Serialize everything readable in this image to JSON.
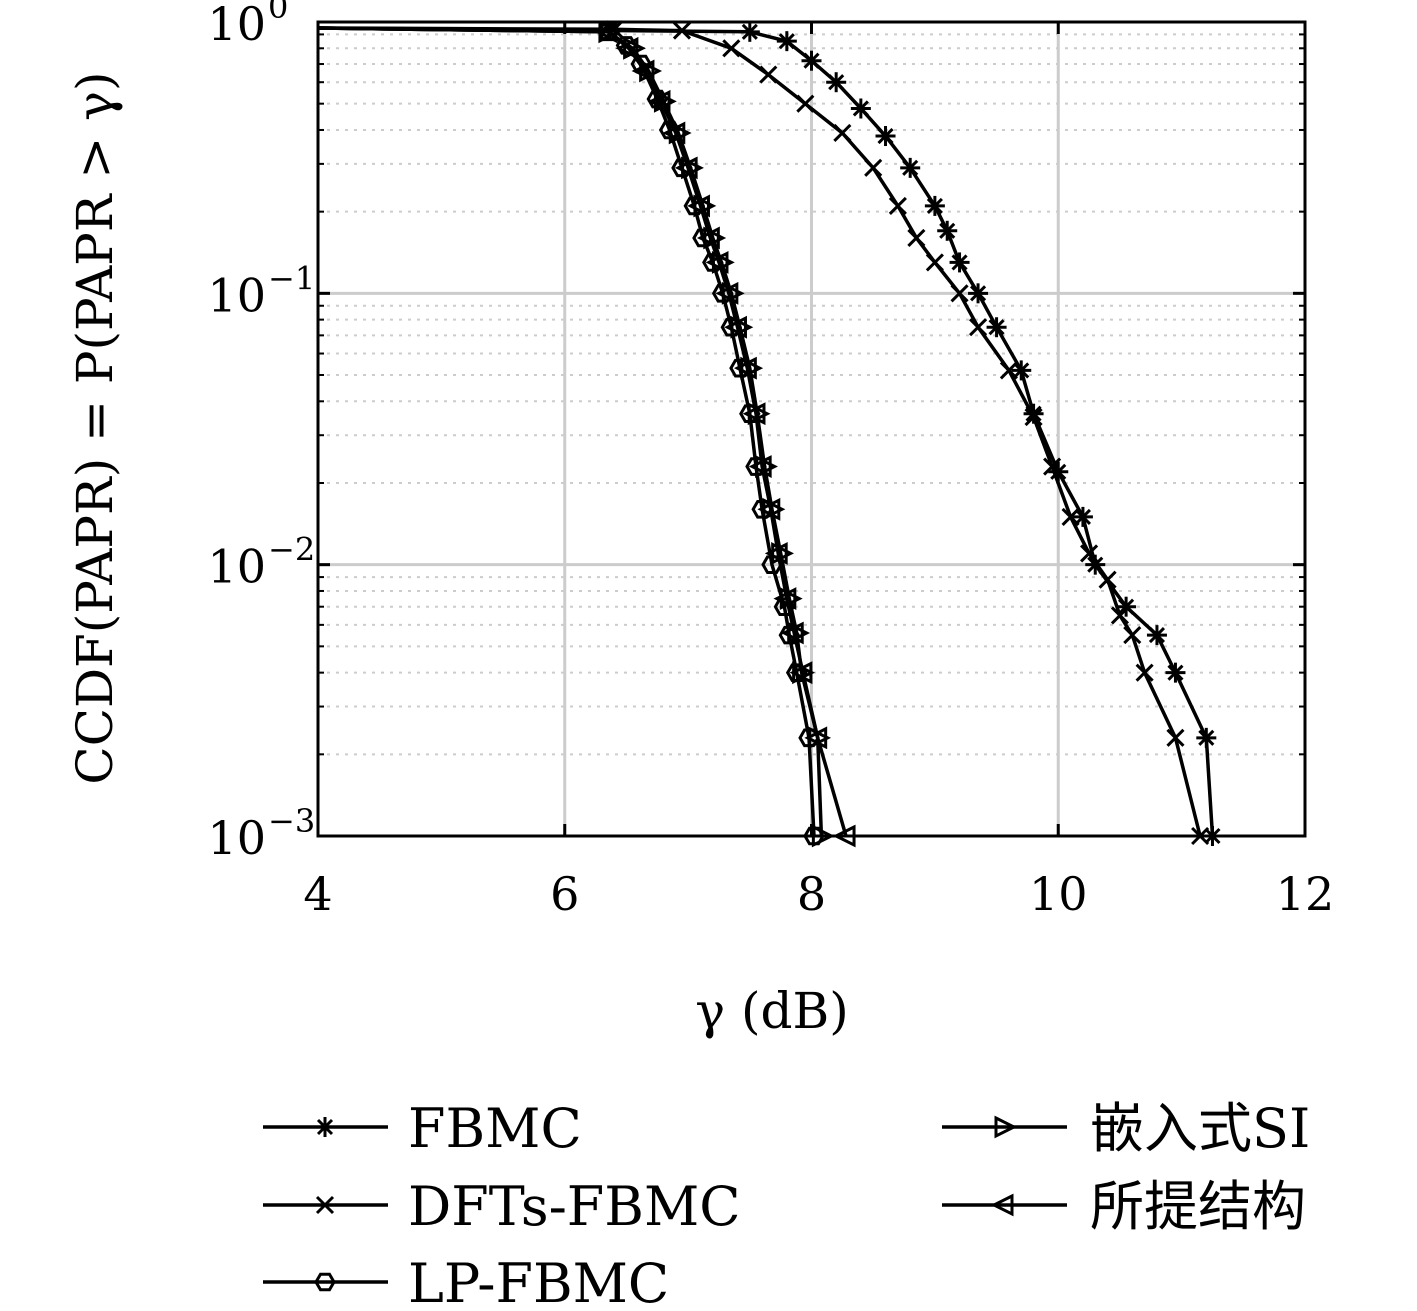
{
  "chart_data": {
    "type": "line",
    "xlabel": "γ (dB)",
    "ylabel": "CCDF(PAPR) = P(PAPR > γ)",
    "xlim": [
      4,
      12
    ],
    "ylim": [
      0.001,
      1
    ],
    "yscale": "log",
    "grid": true,
    "legend_position": "below",
    "x_ticks": [
      "4",
      "6",
      "8",
      "10",
      "12"
    ],
    "y_ticks": [
      {
        "base": "10",
        "exp": "0",
        "value": 1
      },
      {
        "base": "10",
        "exp": "−1",
        "value": 0.1
      },
      {
        "base": "10",
        "exp": "−2",
        "value": 0.01
      },
      {
        "base": "10",
        "exp": "−3",
        "value": 0.001
      }
    ],
    "series": [
      {
        "name": "FBMC",
        "marker": "asterisk",
        "points": [
          [
            4.0,
            0.95
          ],
          [
            7.5,
            0.92
          ],
          [
            7.8,
            0.85
          ],
          [
            8.0,
            0.72
          ],
          [
            8.2,
            0.6
          ],
          [
            8.4,
            0.48
          ],
          [
            8.6,
            0.38
          ],
          [
            8.8,
            0.29
          ],
          [
            9.0,
            0.21
          ],
          [
            9.1,
            0.17
          ],
          [
            9.2,
            0.13
          ],
          [
            9.35,
            0.1
          ],
          [
            9.5,
            0.075
          ],
          [
            9.7,
            0.052
          ],
          [
            9.8,
            0.036
          ],
          [
            10.0,
            0.022
          ],
          [
            10.2,
            0.015
          ],
          [
            10.3,
            0.01
          ],
          [
            10.55,
            0.007
          ],
          [
            10.8,
            0.0055
          ],
          [
            10.95,
            0.004
          ],
          [
            11.2,
            0.0023
          ],
          [
            11.25,
            0.001
          ]
        ]
      },
      {
        "name": "DFTs-FBMC",
        "marker": "x",
        "points": [
          [
            4.0,
            0.95
          ],
          [
            6.4,
            0.94
          ],
          [
            6.95,
            0.93
          ],
          [
            7.35,
            0.8
          ],
          [
            7.65,
            0.64
          ],
          [
            7.95,
            0.5
          ],
          [
            8.25,
            0.39
          ],
          [
            8.5,
            0.29
          ],
          [
            8.7,
            0.21
          ],
          [
            8.85,
            0.16
          ],
          [
            9.0,
            0.13
          ],
          [
            9.2,
            0.1
          ],
          [
            9.35,
            0.075
          ],
          [
            9.6,
            0.052
          ],
          [
            9.8,
            0.035
          ],
          [
            9.95,
            0.023
          ],
          [
            10.1,
            0.015
          ],
          [
            10.25,
            0.011
          ],
          [
            10.4,
            0.0088
          ],
          [
            10.5,
            0.0065
          ],
          [
            10.6,
            0.0055
          ],
          [
            10.7,
            0.004
          ],
          [
            10.95,
            0.0023
          ],
          [
            11.15,
            0.001
          ]
        ]
      },
      {
        "name": "LP-FBMC",
        "marker": "hexagon",
        "points": [
          [
            4.0,
            0.95
          ],
          [
            6.35,
            0.92
          ],
          [
            6.5,
            0.82
          ],
          [
            6.62,
            0.7
          ],
          [
            6.75,
            0.52
          ],
          [
            6.85,
            0.4
          ],
          [
            6.95,
            0.29
          ],
          [
            7.05,
            0.21
          ],
          [
            7.12,
            0.16
          ],
          [
            7.2,
            0.13
          ],
          [
            7.28,
            0.1
          ],
          [
            7.35,
            0.075
          ],
          [
            7.42,
            0.053
          ],
          [
            7.5,
            0.036
          ],
          [
            7.55,
            0.023
          ],
          [
            7.6,
            0.016
          ],
          [
            7.68,
            0.01
          ],
          [
            7.78,
            0.007
          ],
          [
            7.82,
            0.0055
          ],
          [
            7.88,
            0.004
          ],
          [
            7.98,
            0.0023
          ],
          [
            8.02,
            0.001
          ]
        ]
      },
      {
        "name": "嵌入式SI",
        "marker": "triangle-right",
        "points": [
          [
            4.0,
            0.95
          ],
          [
            6.35,
            0.92
          ],
          [
            6.55,
            0.8
          ],
          [
            6.68,
            0.66
          ],
          [
            6.8,
            0.51
          ],
          [
            6.92,
            0.39
          ],
          [
            7.02,
            0.29
          ],
          [
            7.12,
            0.21
          ],
          [
            7.2,
            0.16
          ],
          [
            7.27,
            0.13
          ],
          [
            7.35,
            0.1
          ],
          [
            7.42,
            0.075
          ],
          [
            7.5,
            0.053
          ],
          [
            7.56,
            0.036
          ],
          [
            7.62,
            0.023
          ],
          [
            7.68,
            0.016
          ],
          [
            7.75,
            0.011
          ],
          [
            7.82,
            0.0075
          ],
          [
            7.88,
            0.0056
          ],
          [
            7.92,
            0.004
          ],
          [
            8.05,
            0.0023
          ],
          [
            8.08,
            0.001
          ]
        ]
      },
      {
        "name": "所提结构",
        "marker": "triangle-left",
        "points": [
          [
            4.0,
            0.95
          ],
          [
            6.35,
            0.92
          ],
          [
            6.52,
            0.8
          ],
          [
            6.65,
            0.66
          ],
          [
            6.78,
            0.51
          ],
          [
            6.9,
            0.39
          ],
          [
            7.0,
            0.29
          ],
          [
            7.1,
            0.21
          ],
          [
            7.18,
            0.16
          ],
          [
            7.25,
            0.13
          ],
          [
            7.33,
            0.1
          ],
          [
            7.4,
            0.075
          ],
          [
            7.48,
            0.053
          ],
          [
            7.55,
            0.036
          ],
          [
            7.6,
            0.023
          ],
          [
            7.67,
            0.016
          ],
          [
            7.73,
            0.011
          ],
          [
            7.8,
            0.0075
          ],
          [
            7.86,
            0.0056
          ],
          [
            7.93,
            0.004
          ],
          [
            8.05,
            0.0023
          ],
          [
            8.28,
            0.001
          ]
        ]
      }
    ]
  }
}
